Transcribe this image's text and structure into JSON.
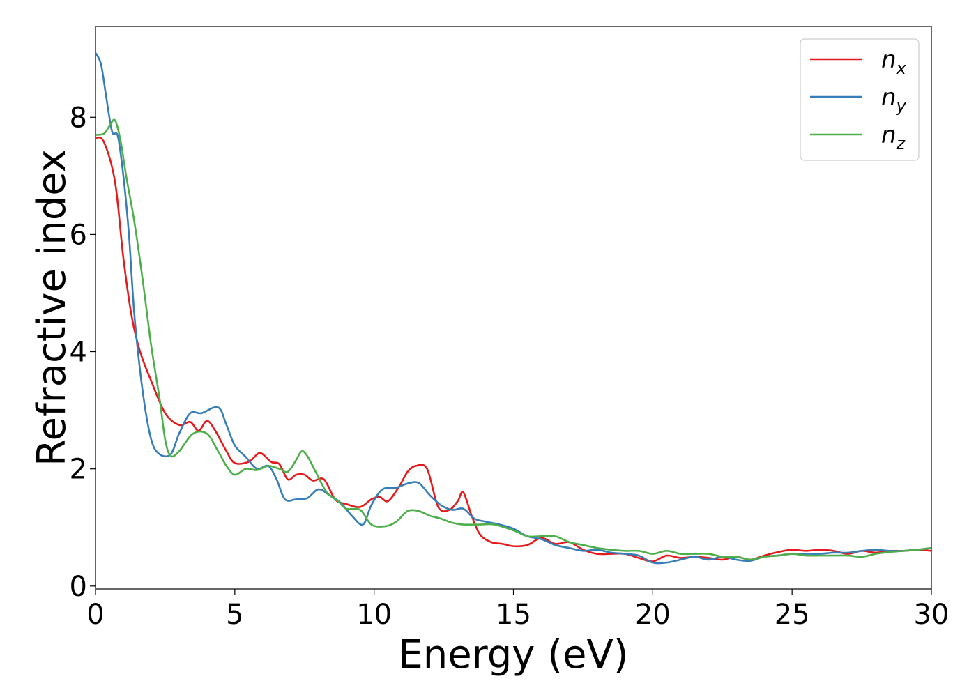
{
  "chart_data": {
    "type": "line",
    "title": "",
    "xlabel": "Energy (eV)",
    "ylabel": "Refractive index",
    "xlim": [
      0,
      30
    ],
    "ylim": [
      -0.05,
      9.55
    ],
    "xticks": [
      0,
      5,
      10,
      15,
      20,
      25,
      30
    ],
    "yticks": [
      0,
      2,
      4,
      6,
      8
    ],
    "grid": false,
    "legend_position": "top-right",
    "series": [
      {
        "name": "n",
        "subscript": "x",
        "color": "#e41a1c",
        "points": [
          [
            0,
            7.65
          ],
          [
            0.3,
            7.58
          ],
          [
            0.7,
            6.9
          ],
          [
            1.0,
            5.6
          ],
          [
            1.3,
            4.6
          ],
          [
            1.6,
            4.0
          ],
          [
            2.0,
            3.5
          ],
          [
            2.5,
            2.95
          ],
          [
            3.0,
            2.75
          ],
          [
            3.4,
            2.8
          ],
          [
            3.7,
            2.65
          ],
          [
            4.0,
            2.82
          ],
          [
            4.3,
            2.65
          ],
          [
            4.7,
            2.3
          ],
          [
            5.0,
            2.1
          ],
          [
            5.5,
            2.12
          ],
          [
            5.9,
            2.27
          ],
          [
            6.3,
            2.12
          ],
          [
            6.6,
            2.08
          ],
          [
            6.9,
            1.82
          ],
          [
            7.2,
            1.9
          ],
          [
            7.5,
            1.9
          ],
          [
            7.8,
            1.8
          ],
          [
            8.2,
            1.82
          ],
          [
            8.6,
            1.48
          ],
          [
            9.0,
            1.4
          ],
          [
            9.5,
            1.35
          ],
          [
            9.9,
            1.48
          ],
          [
            10.2,
            1.52
          ],
          [
            10.5,
            1.45
          ],
          [
            10.9,
            1.7
          ],
          [
            11.2,
            1.95
          ],
          [
            11.5,
            2.05
          ],
          [
            11.9,
            2.0
          ],
          [
            12.3,
            1.35
          ],
          [
            12.7,
            1.3
          ],
          [
            13.0,
            1.45
          ],
          [
            13.2,
            1.6
          ],
          [
            13.5,
            1.2
          ],
          [
            13.8,
            0.88
          ],
          [
            14.2,
            0.75
          ],
          [
            14.6,
            0.72
          ],
          [
            15.0,
            0.68
          ],
          [
            15.5,
            0.7
          ],
          [
            16.0,
            0.82
          ],
          [
            16.5,
            0.72
          ],
          [
            17.0,
            0.75
          ],
          [
            17.5,
            0.62
          ],
          [
            18.0,
            0.55
          ],
          [
            18.5,
            0.55
          ],
          [
            19.0,
            0.55
          ],
          [
            19.5,
            0.48
          ],
          [
            20.0,
            0.42
          ],
          [
            20.5,
            0.52
          ],
          [
            21.0,
            0.48
          ],
          [
            21.5,
            0.5
          ],
          [
            22.0,
            0.48
          ],
          [
            22.5,
            0.45
          ],
          [
            23.0,
            0.5
          ],
          [
            23.5,
            0.45
          ],
          [
            24.0,
            0.52
          ],
          [
            24.5,
            0.58
          ],
          [
            25.0,
            0.62
          ],
          [
            25.5,
            0.6
          ],
          [
            26.0,
            0.62
          ],
          [
            26.5,
            0.6
          ],
          [
            27.0,
            0.55
          ],
          [
            27.5,
            0.6
          ],
          [
            28.0,
            0.57
          ],
          [
            28.5,
            0.6
          ],
          [
            29.0,
            0.6
          ],
          [
            29.5,
            0.62
          ],
          [
            30.0,
            0.6
          ]
        ]
      },
      {
        "name": "n",
        "subscript": "y",
        "color": "#377eb8",
        "points": [
          [
            0,
            9.1
          ],
          [
            0.2,
            8.9
          ],
          [
            0.4,
            8.3
          ],
          [
            0.6,
            7.75
          ],
          [
            0.8,
            7.68
          ],
          [
            1.0,
            7.0
          ],
          [
            1.2,
            6.0
          ],
          [
            1.4,
            4.6
          ],
          [
            1.7,
            3.3
          ],
          [
            2.0,
            2.5
          ],
          [
            2.3,
            2.25
          ],
          [
            2.7,
            2.25
          ],
          [
            3.0,
            2.6
          ],
          [
            3.4,
            2.95
          ],
          [
            3.8,
            2.95
          ],
          [
            4.4,
            3.05
          ],
          [
            4.7,
            2.75
          ],
          [
            5.0,
            2.4
          ],
          [
            5.4,
            2.2
          ],
          [
            5.8,
            2.0
          ],
          [
            6.2,
            2.05
          ],
          [
            6.5,
            1.82
          ],
          [
            6.8,
            1.48
          ],
          [
            7.2,
            1.48
          ],
          [
            7.6,
            1.5
          ],
          [
            8.0,
            1.65
          ],
          [
            8.4,
            1.55
          ],
          [
            8.8,
            1.42
          ],
          [
            9.2,
            1.2
          ],
          [
            9.6,
            1.05
          ],
          [
            9.9,
            1.38
          ],
          [
            10.3,
            1.65
          ],
          [
            10.8,
            1.68
          ],
          [
            11.2,
            1.75
          ],
          [
            11.6,
            1.76
          ],
          [
            12.0,
            1.55
          ],
          [
            12.4,
            1.38
          ],
          [
            12.8,
            1.3
          ],
          [
            13.2,
            1.32
          ],
          [
            13.6,
            1.15
          ],
          [
            14.0,
            1.1
          ],
          [
            14.5,
            1.05
          ],
          [
            15.0,
            0.98
          ],
          [
            15.5,
            0.85
          ],
          [
            16.0,
            0.8
          ],
          [
            16.5,
            0.7
          ],
          [
            17.0,
            0.65
          ],
          [
            17.5,
            0.6
          ],
          [
            18.0,
            0.62
          ],
          [
            18.5,
            0.57
          ],
          [
            19.0,
            0.55
          ],
          [
            19.5,
            0.52
          ],
          [
            20.0,
            0.4
          ],
          [
            20.5,
            0.4
          ],
          [
            21.0,
            0.45
          ],
          [
            21.5,
            0.5
          ],
          [
            22.0,
            0.45
          ],
          [
            22.5,
            0.5
          ],
          [
            23.0,
            0.45
          ],
          [
            23.5,
            0.43
          ],
          [
            24.0,
            0.5
          ],
          [
            24.5,
            0.52
          ],
          [
            25.0,
            0.55
          ],
          [
            25.5,
            0.55
          ],
          [
            26.0,
            0.55
          ],
          [
            26.5,
            0.57
          ],
          [
            27.0,
            0.57
          ],
          [
            27.5,
            0.6
          ],
          [
            28.0,
            0.62
          ],
          [
            28.5,
            0.6
          ],
          [
            29.0,
            0.6
          ],
          [
            29.5,
            0.62
          ],
          [
            30.0,
            0.65
          ]
        ]
      },
      {
        "name": "n",
        "subscript": "z",
        "color": "#4daf4a",
        "points": [
          [
            0,
            7.7
          ],
          [
            0.3,
            7.72
          ],
          [
            0.5,
            7.85
          ],
          [
            0.7,
            7.95
          ],
          [
            0.9,
            7.6
          ],
          [
            1.1,
            7.0
          ],
          [
            1.4,
            6.2
          ],
          [
            1.7,
            5.2
          ],
          [
            2.0,
            4.1
          ],
          [
            2.3,
            3.2
          ],
          [
            2.5,
            2.5
          ],
          [
            2.7,
            2.22
          ],
          [
            3.0,
            2.3
          ],
          [
            3.5,
            2.6
          ],
          [
            4.0,
            2.6
          ],
          [
            4.4,
            2.3
          ],
          [
            4.7,
            2.05
          ],
          [
            5.0,
            1.9
          ],
          [
            5.4,
            2.0
          ],
          [
            5.8,
            1.98
          ],
          [
            6.2,
            2.05
          ],
          [
            6.6,
            2.0
          ],
          [
            6.9,
            1.95
          ],
          [
            7.2,
            2.15
          ],
          [
            7.4,
            2.3
          ],
          [
            7.6,
            2.22
          ],
          [
            7.9,
            1.95
          ],
          [
            8.3,
            1.6
          ],
          [
            8.7,
            1.45
          ],
          [
            9.0,
            1.32
          ],
          [
            9.5,
            1.3
          ],
          [
            9.9,
            1.05
          ],
          [
            10.4,
            1.02
          ],
          [
            10.8,
            1.1
          ],
          [
            11.2,
            1.28
          ],
          [
            11.6,
            1.28
          ],
          [
            12.0,
            1.2
          ],
          [
            12.4,
            1.15
          ],
          [
            12.8,
            1.08
          ],
          [
            13.2,
            1.05
          ],
          [
            13.8,
            1.05
          ],
          [
            14.3,
            1.05
          ],
          [
            15.0,
            0.95
          ],
          [
            15.5,
            0.85
          ],
          [
            16.0,
            0.85
          ],
          [
            16.5,
            0.85
          ],
          [
            17.0,
            0.75
          ],
          [
            17.5,
            0.7
          ],
          [
            18.0,
            0.65
          ],
          [
            18.5,
            0.62
          ],
          [
            19.0,
            0.6
          ],
          [
            19.5,
            0.6
          ],
          [
            20.0,
            0.55
          ],
          [
            20.5,
            0.6
          ],
          [
            21.0,
            0.55
          ],
          [
            21.5,
            0.55
          ],
          [
            22.0,
            0.55
          ],
          [
            22.5,
            0.5
          ],
          [
            23.0,
            0.5
          ],
          [
            23.5,
            0.45
          ],
          [
            24.0,
            0.5
          ],
          [
            24.5,
            0.52
          ],
          [
            25.0,
            0.55
          ],
          [
            25.5,
            0.52
          ],
          [
            26.0,
            0.52
          ],
          [
            26.5,
            0.52
          ],
          [
            27.0,
            0.52
          ],
          [
            27.5,
            0.5
          ],
          [
            28.0,
            0.55
          ],
          [
            28.5,
            0.58
          ],
          [
            29.0,
            0.6
          ],
          [
            29.5,
            0.62
          ],
          [
            30.0,
            0.65
          ]
        ]
      }
    ]
  }
}
